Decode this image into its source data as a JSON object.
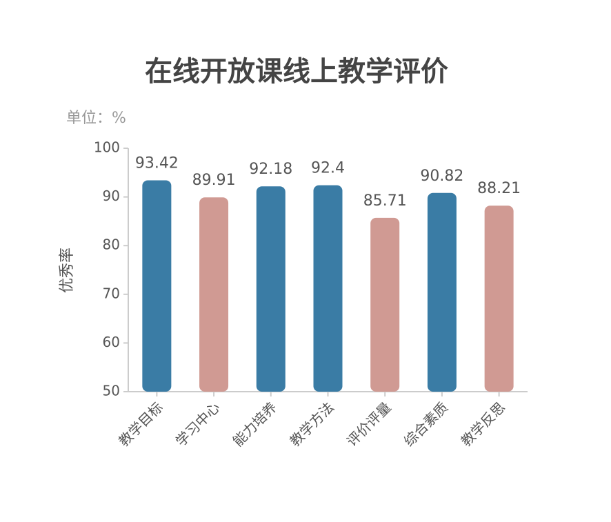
{
  "chart_data": {
    "type": "bar",
    "title": "在线开放课线上教学评价",
    "unit": "单位：%",
    "y_label": "优秀率",
    "categories": [
      "教学目标",
      "学习中心",
      "能力培养",
      "教学方法",
      "评价评量",
      "综合素质",
      "教学反思"
    ],
    "values": [
      93.42,
      89.91,
      92.18,
      92.4,
      85.71,
      90.82,
      88.21
    ],
    "colors": [
      "#3a7ca5",
      "#d09a93",
      "#3a7ca5",
      "#3a7ca5",
      "#d09a93",
      "#3a7ca5",
      "#d09a93"
    ],
    "ylim": [
      50,
      100
    ],
    "yticks": [
      50,
      60,
      70,
      80,
      90,
      100
    ],
    "grid": false
  }
}
